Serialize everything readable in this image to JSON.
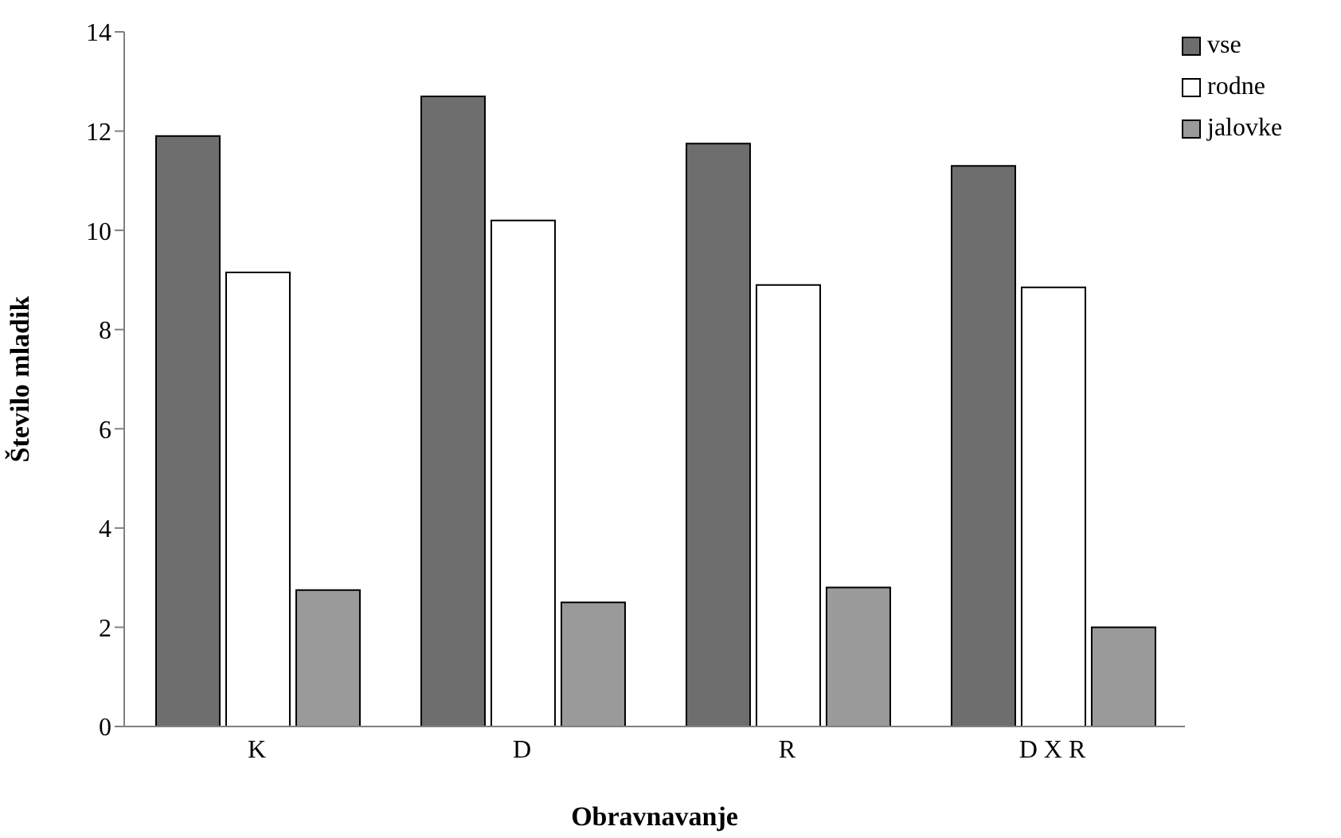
{
  "chart_data": {
    "type": "bar",
    "xlabel": "Obravnavanje",
    "ylabel": "Število mladik",
    "categories": [
      "K",
      "D",
      "R",
      "D X R"
    ],
    "series": [
      {
        "name": "vse",
        "color": "#6e6e6e",
        "values": [
          11.9,
          12.7,
          11.75,
          11.3
        ]
      },
      {
        "name": "rodne",
        "color": "#ffffff",
        "values": [
          9.15,
          10.2,
          8.9,
          8.85
        ]
      },
      {
        "name": "jalovke",
        "color": "#9a9a9a",
        "values": [
          2.75,
          2.5,
          2.8,
          2.0
        ]
      }
    ],
    "ylim": [
      0,
      14
    ],
    "yticks": [
      0,
      2,
      4,
      6,
      8,
      10,
      12,
      14
    ],
    "grid": false,
    "legend": "top right"
  }
}
